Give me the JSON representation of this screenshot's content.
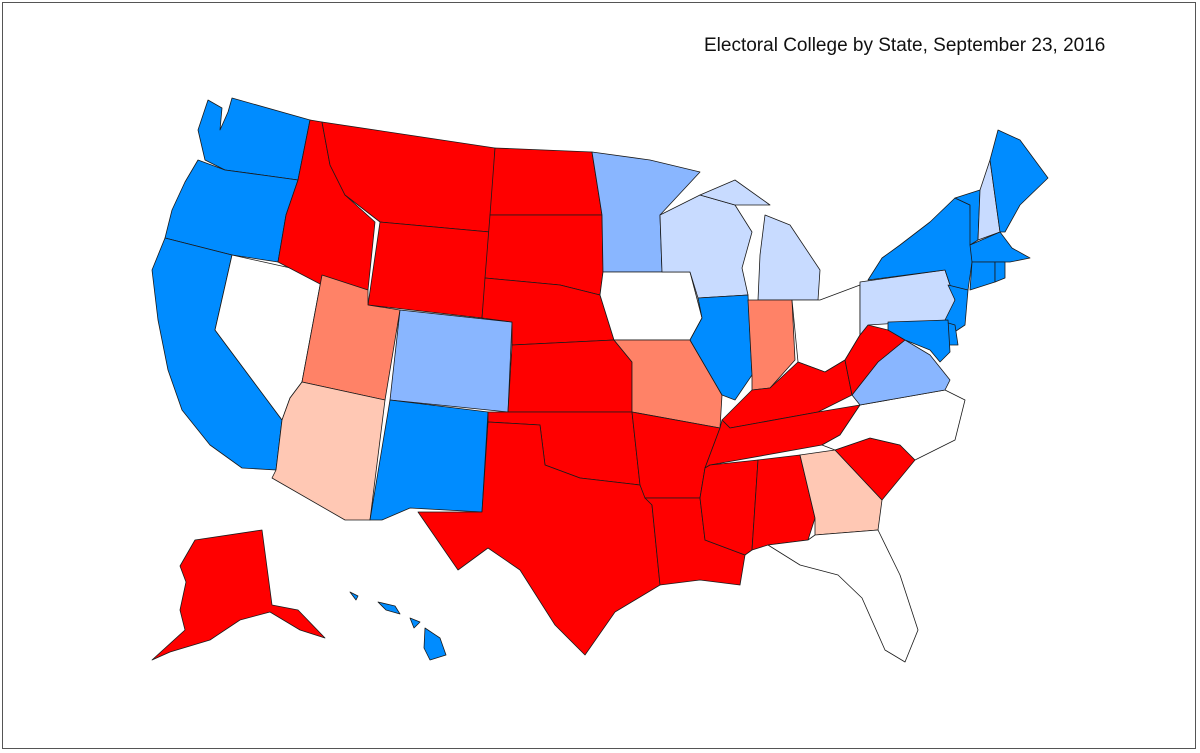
{
  "title": "Electoral College by State, September 23, 2016",
  "colors": {
    "solid_dem": "#008cff",
    "likely_dem": "#89b6ff",
    "lean_dem": "#c8dbff",
    "tossup": "#ffffff",
    "lean_rep": "#ffc8b4",
    "likely_rep": "#ff8267",
    "solid_rep": "#ff0000"
  },
  "states": {
    "WA": "solid_dem",
    "OR": "solid_dem",
    "CA": "solid_dem",
    "NV": "tossup",
    "ID": "solid_rep",
    "MT": "solid_rep",
    "WY": "solid_rep",
    "UT": "likely_rep",
    "AZ": "lean_rep",
    "CO": "likely_dem",
    "NM": "solid_dem",
    "ND": "solid_rep",
    "SD": "solid_rep",
    "NE": "solid_rep",
    "KS": "solid_rep",
    "OK": "solid_rep",
    "TX": "solid_rep",
    "MN": "likely_dem",
    "IA": "tossup",
    "MO": "likely_rep",
    "AR": "solid_rep",
    "LA": "solid_rep",
    "WI": "lean_dem",
    "IL": "solid_dem",
    "MI": "lean_dem",
    "IN": "likely_rep",
    "OH": "tossup",
    "KY": "solid_rep",
    "TN": "solid_rep",
    "MS": "solid_rep",
    "AL": "solid_rep",
    "GA": "lean_rep",
    "FL": "tossup",
    "SC": "solid_rep",
    "NC": "tossup",
    "VA": "likely_dem",
    "WV": "solid_rep",
    "PA": "lean_dem",
    "NY": "solid_dem",
    "VT": "solid_dem",
    "NH": "lean_dem",
    "ME": "solid_dem",
    "MA": "solid_dem",
    "CT": "solid_dem",
    "RI": "solid_dem",
    "NJ": "solid_dem",
    "DE": "solid_dem",
    "MD": "solid_dem",
    "AK": "solid_rep",
    "HI": "solid_dem"
  }
}
